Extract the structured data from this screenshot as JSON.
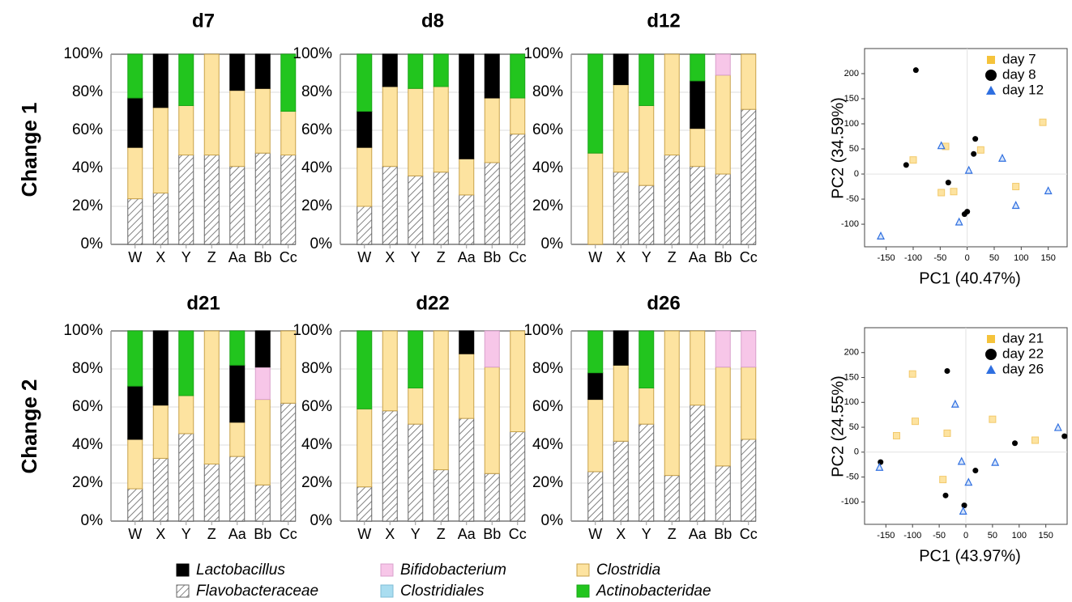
{
  "rows": [
    {
      "label": "Change 1"
    },
    {
      "label": "Change 2"
    }
  ],
  "colors": {
    "Lactobacillus": "#000000",
    "Flavobacteraceae": "hatch",
    "Bifidobacterium": "#f7c6e8",
    "Clostridiales": "#a9ddf0",
    "Clostridia": "#fde3a0",
    "Actinobacteridae": "#22c51e",
    "clostridia_stroke": "#c8a24a",
    "pca_day_a": "#f5c33b",
    "pca_day_b": "#000000",
    "pca_day_c": "#2f6fe0"
  },
  "legend": {
    "items": [
      {
        "label": "Lactobacillus",
        "key": "Lactobacillus"
      },
      {
        "label": "Flavobacteraceae",
        "key": "Flavobacteraceae"
      },
      {
        "label": "Bifidobacterium",
        "key": "Bifidobacterium"
      },
      {
        "label": "Clostridiales",
        "key": "Clostridiales"
      },
      {
        "label": "Clostridia",
        "key": "Clostridia"
      },
      {
        "label": "Actinobacteridae",
        "key": "Actinobacteridae"
      }
    ]
  },
  "chart_data": [
    {
      "type": "bar",
      "stacked": true,
      "title": "d7",
      "row": 0,
      "categories": [
        "W",
        "X",
        "Y",
        "Z",
        "Aa",
        "Bb",
        "Cc"
      ],
      "yticks": [
        "0%",
        "20%",
        "40%",
        "60%",
        "80%",
        "100%"
      ],
      "ylim": [
        0,
        100
      ],
      "series": [
        {
          "name": "Flavobacteraceae",
          "values": [
            24,
            27,
            47,
            47,
            41,
            48,
            47
          ]
        },
        {
          "name": "Clostridia",
          "values": [
            27,
            45,
            26,
            53,
            40,
            34,
            23
          ]
        },
        {
          "name": "Bifidobacterium",
          "values": [
            0,
            0,
            0,
            0,
            0,
            0,
            0
          ]
        },
        {
          "name": "Lactobacillus",
          "values": [
            26,
            28,
            0,
            0,
            19,
            18,
            0
          ]
        },
        {
          "name": "Actinobacteridae",
          "values": [
            23,
            0,
            27,
            0,
            0,
            0,
            30
          ]
        }
      ]
    },
    {
      "type": "bar",
      "stacked": true,
      "title": "d8",
      "row": 0,
      "categories": [
        "W",
        "X",
        "Y",
        "Z",
        "Aa",
        "Bb",
        "Cc"
      ],
      "yticks": [
        "0%",
        "20%",
        "40%",
        "60%",
        "80%",
        "100%"
      ],
      "ylim": [
        0,
        100
      ],
      "series": [
        {
          "name": "Flavobacteraceae",
          "values": [
            20,
            41,
            36,
            38,
            26,
            43,
            58
          ]
        },
        {
          "name": "Clostridia",
          "values": [
            31,
            42,
            46,
            45,
            19,
            34,
            19
          ]
        },
        {
          "name": "Bifidobacterium",
          "values": [
            0,
            0,
            0,
            0,
            0,
            0,
            0
          ]
        },
        {
          "name": "Lactobacillus",
          "values": [
            19,
            17,
            0,
            0,
            55,
            23,
            0
          ]
        },
        {
          "name": "Actinobacteridae",
          "values": [
            30,
            0,
            18,
            17,
            0,
            0,
            23
          ]
        }
      ]
    },
    {
      "type": "bar",
      "stacked": true,
      "title": "d12",
      "row": 0,
      "categories": [
        "W",
        "X",
        "Y",
        "Z",
        "Aa",
        "Bb",
        "Cc"
      ],
      "yticks": [
        "0%",
        "20%",
        "40%",
        "60%",
        "80%",
        "100%"
      ],
      "ylim": [
        0,
        100
      ],
      "series": [
        {
          "name": "Flavobacteraceae",
          "values": [
            0,
            38,
            31,
            47,
            41,
            37,
            71
          ]
        },
        {
          "name": "Clostridia",
          "values": [
            48,
            46,
            42,
            53,
            20,
            52,
            29
          ]
        },
        {
          "name": "Bifidobacterium",
          "values": [
            0,
            0,
            0,
            0,
            0,
            11,
            0
          ]
        },
        {
          "name": "Lactobacillus",
          "values": [
            0,
            16,
            0,
            0,
            25,
            0,
            0
          ]
        },
        {
          "name": "Actinobacteridae",
          "values": [
            52,
            0,
            27,
            0,
            14,
            0,
            0
          ]
        }
      ]
    },
    {
      "type": "bar",
      "stacked": true,
      "title": "d21",
      "row": 1,
      "categories": [
        "W",
        "X",
        "Y",
        "Z",
        "Aa",
        "Bb",
        "Cc"
      ],
      "yticks": [
        "0%",
        "20%",
        "40%",
        "60%",
        "80%",
        "100%"
      ],
      "ylim": [
        0,
        100
      ],
      "series": [
        {
          "name": "Flavobacteraceae",
          "values": [
            17,
            33,
            46,
            30,
            34,
            19,
            62
          ]
        },
        {
          "name": "Clostridia",
          "values": [
            26,
            28,
            20,
            70,
            18,
            45,
            38
          ]
        },
        {
          "name": "Bifidobacterium",
          "values": [
            0,
            0,
            0,
            0,
            0,
            17,
            0
          ]
        },
        {
          "name": "Lactobacillus",
          "values": [
            28,
            39,
            0,
            0,
            30,
            19,
            0
          ]
        },
        {
          "name": "Actinobacteridae",
          "values": [
            29,
            0,
            34,
            0,
            18,
            0,
            0
          ]
        }
      ]
    },
    {
      "type": "bar",
      "stacked": true,
      "title": "d22",
      "row": 1,
      "categories": [
        "W",
        "X",
        "Y",
        "Z",
        "Aa",
        "Bb",
        "Cc"
      ],
      "yticks": [
        "0%",
        "20%",
        "40%",
        "60%",
        "80%",
        "100%"
      ],
      "ylim": [
        0,
        100
      ],
      "series": [
        {
          "name": "Flavobacteraceae",
          "values": [
            18,
            58,
            51,
            27,
            54,
            25,
            47
          ]
        },
        {
          "name": "Clostridia",
          "values": [
            41,
            42,
            19,
            73,
            34,
            56,
            53
          ]
        },
        {
          "name": "Bifidobacterium",
          "values": [
            0,
            0,
            0,
            0,
            0,
            19,
            0
          ]
        },
        {
          "name": "Lactobacillus",
          "values": [
            0,
            0,
            0,
            0,
            12,
            0,
            0
          ]
        },
        {
          "name": "Actinobacteridae",
          "values": [
            41,
            0,
            30,
            0,
            0,
            0,
            0
          ]
        }
      ]
    },
    {
      "type": "bar",
      "stacked": true,
      "title": "d26",
      "row": 1,
      "categories": [
        "W",
        "X",
        "Y",
        "Z",
        "Aa",
        "Bb",
        "Cc"
      ],
      "yticks": [
        "0%",
        "20%",
        "40%",
        "60%",
        "80%",
        "100%"
      ],
      "ylim": [
        0,
        100
      ],
      "series": [
        {
          "name": "Flavobacteraceae",
          "values": [
            26,
            42,
            51,
            24,
            61,
            29,
            43
          ]
        },
        {
          "name": "Clostridia",
          "values": [
            38,
            40,
            19,
            76,
            39,
            52,
            38
          ]
        },
        {
          "name": "Bifidobacterium",
          "values": [
            0,
            0,
            0,
            0,
            0,
            19,
            19
          ]
        },
        {
          "name": "Lactobacillus",
          "values": [
            14,
            18,
            0,
            0,
            0,
            0,
            0
          ]
        },
        {
          "name": "Actinobacteridae",
          "values": [
            22,
            0,
            30,
            0,
            0,
            0,
            0
          ]
        }
      ]
    },
    {
      "type": "scatter",
      "row": 0,
      "xlabel": "PC1 (40.47%)",
      "ylabel": "PC2 (34.59%)",
      "xlim": [
        -190,
        185
      ],
      "ylim": [
        -145,
        250
      ],
      "xticks": [
        -150,
        -100,
        -50,
        0,
        50,
        100,
        150
      ],
      "yticks": [
        -100,
        -50,
        0,
        50,
        100,
        150,
        200
      ],
      "series": [
        {
          "name": "day 7",
          "marker": "square",
          "color_key": "pca_day_a",
          "points": [
            [
              -100,
              28
            ],
            [
              -48,
              -37
            ],
            [
              -40,
              55
            ],
            [
              -25,
              -35
            ],
            [
              25,
              48
            ],
            [
              90,
              -25
            ],
            [
              140,
              103
            ]
          ]
        },
        {
          "name": "day 8",
          "marker": "circle",
          "color_key": "pca_day_b",
          "points": [
            [
              -95,
              207
            ],
            [
              -113,
              18
            ],
            [
              -35,
              -17
            ],
            [
              -5,
              -80
            ],
            [
              0,
              -75
            ],
            [
              15,
              70
            ],
            [
              12,
              40
            ]
          ]
        },
        {
          "name": "day 12",
          "marker": "triangle",
          "color_key": "pca_day_c",
          "points": [
            [
              -160,
              -123
            ],
            [
              -48,
              57
            ],
            [
              -15,
              -95
            ],
            [
              3,
              8
            ],
            [
              65,
              32
            ],
            [
              90,
              -62
            ],
            [
              150,
              -33
            ]
          ]
        }
      ]
    },
    {
      "type": "scatter",
      "row": 1,
      "xlabel": "PC1 (43.97%)",
      "ylabel": "PC2 (24.55%)",
      "xlim": [
        -190,
        190
      ],
      "ylim": [
        -145,
        250
      ],
      "xticks": [
        -150,
        -100,
        -50,
        0,
        50,
        100,
        150
      ],
      "yticks": [
        -100,
        -50,
        0,
        50,
        100,
        150,
        200
      ],
      "series": [
        {
          "name": "day 21",
          "marker": "square",
          "color_key": "pca_day_a",
          "points": [
            [
              -130,
              33
            ],
            [
              -100,
              157
            ],
            [
              -95,
              62
            ],
            [
              -43,
              -55
            ],
            [
              -35,
              38
            ],
            [
              50,
              66
            ],
            [
              130,
              24
            ]
          ]
        },
        {
          "name": "day 22",
          "marker": "circle",
          "color_key": "pca_day_b",
          "points": [
            [
              -160,
              -20
            ],
            [
              -35,
              163
            ],
            [
              -38,
              -87
            ],
            [
              -3,
              -107
            ],
            [
              18,
              -37
            ],
            [
              92,
              18
            ],
            [
              185,
              32
            ]
          ]
        },
        {
          "name": "day 26",
          "marker": "triangle",
          "color_key": "pca_day_c",
          "points": [
            [
              -162,
              -30
            ],
            [
              -20,
              97
            ],
            [
              -8,
              -18
            ],
            [
              5,
              -60
            ],
            [
              55,
              -20
            ],
            [
              173,
              50
            ],
            [
              -5,
              -118
            ]
          ]
        }
      ]
    }
  ]
}
